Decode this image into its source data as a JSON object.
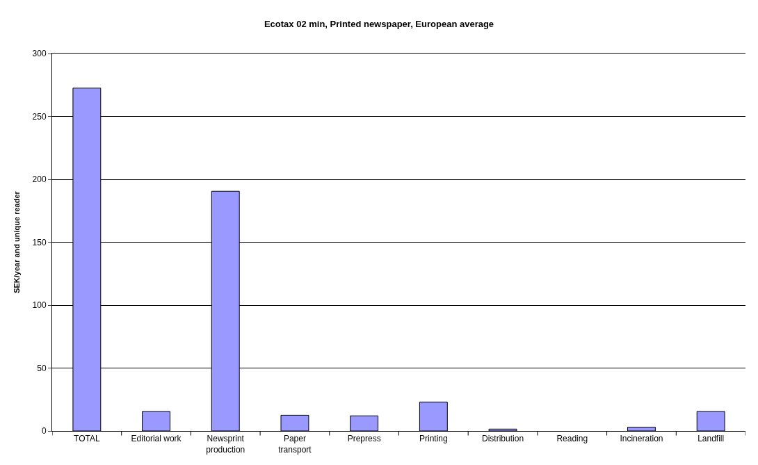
{
  "chart_data": {
    "type": "bar",
    "title": "Ecotax 02 min, Printed newspaper, European average",
    "ylabel": "SEK/year and unique reader",
    "categories": [
      "TOTAL",
      "Editorial work",
      "Newsprint\nproduction",
      "Paper\ntransport",
      "Prepress",
      "Printing",
      "Distribution",
      "Reading",
      "Incineration",
      "Landfill"
    ],
    "values": [
      272.5,
      15.5,
      190.5,
      12.5,
      12,
      23,
      1.5,
      0,
      3,
      15.5
    ],
    "color": "#9999ff",
    "ylim": [
      0,
      300
    ],
    "yticks": [
      0,
      50,
      100,
      150,
      200,
      250,
      300
    ],
    "grid": "y"
  }
}
